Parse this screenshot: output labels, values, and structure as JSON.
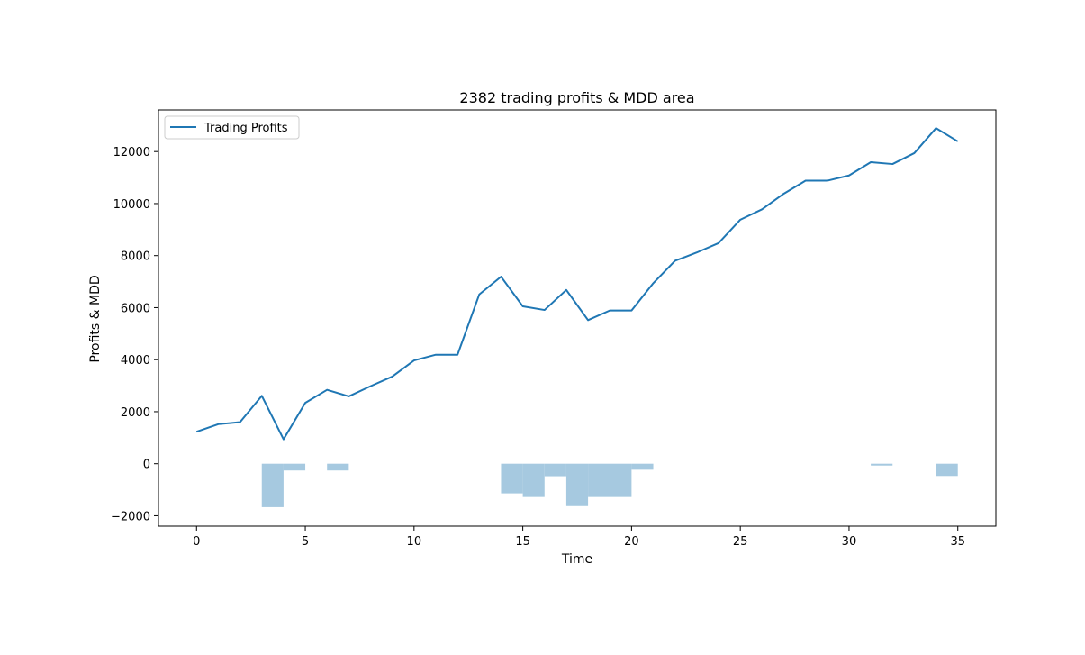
{
  "chart_data": {
    "type": "line",
    "title": "2382 trading profits & MDD area",
    "xlabel": "Time",
    "ylabel": "Profits & MDD",
    "xlim": [
      -1.75,
      36.75
    ],
    "ylim": [
      -2400,
      13600
    ],
    "xticks": [
      0,
      5,
      10,
      15,
      20,
      25,
      30,
      35
    ],
    "yticks": [
      -2000,
      0,
      2000,
      4000,
      6000,
      8000,
      10000,
      12000
    ],
    "grid": false,
    "legend_position": "top-left",
    "line_color": "#1f77b4",
    "fill_color": "#a6c9e0",
    "series": [
      {
        "name": "Trading Profits",
        "x": [
          0,
          1,
          2,
          3,
          4,
          5,
          6,
          7,
          8,
          9,
          10,
          11,
          12,
          13,
          14,
          15,
          16,
          17,
          18,
          19,
          20,
          21,
          22,
          23,
          24,
          25,
          26,
          27,
          28,
          29,
          30,
          31,
          32,
          33,
          34,
          35
        ],
        "values": [
          1230,
          1520,
          1600,
          2610,
          940,
          2340,
          2840,
          2590,
          2980,
          3350,
          3970,
          4190,
          4190,
          6510,
          7190,
          6050,
          5910,
          6680,
          5520,
          5890,
          5890,
          6940,
          7800,
          8120,
          8480,
          9380,
          9780,
          10380,
          10880,
          10880,
          11080,
          11590,
          11520,
          11940,
          12900,
          12390
        ]
      },
      {
        "name": "MDD",
        "style": "step-fill",
        "x": [
          0,
          1,
          2,
          3,
          4,
          5,
          6,
          7,
          8,
          9,
          10,
          11,
          12,
          13,
          14,
          15,
          16,
          17,
          18,
          19,
          20,
          21,
          22,
          23,
          24,
          25,
          26,
          27,
          28,
          29,
          30,
          31,
          32,
          33,
          34,
          35
        ],
        "values": [
          0,
          0,
          0,
          -1670,
          -260,
          0,
          -260,
          0,
          0,
          0,
          0,
          0,
          0,
          0,
          -1140,
          -1280,
          -480,
          -1630,
          -1280,
          -1280,
          -230,
          0,
          0,
          0,
          0,
          0,
          0,
          0,
          0,
          0,
          0,
          -70,
          0,
          0,
          -470,
          0
        ]
      }
    ]
  }
}
